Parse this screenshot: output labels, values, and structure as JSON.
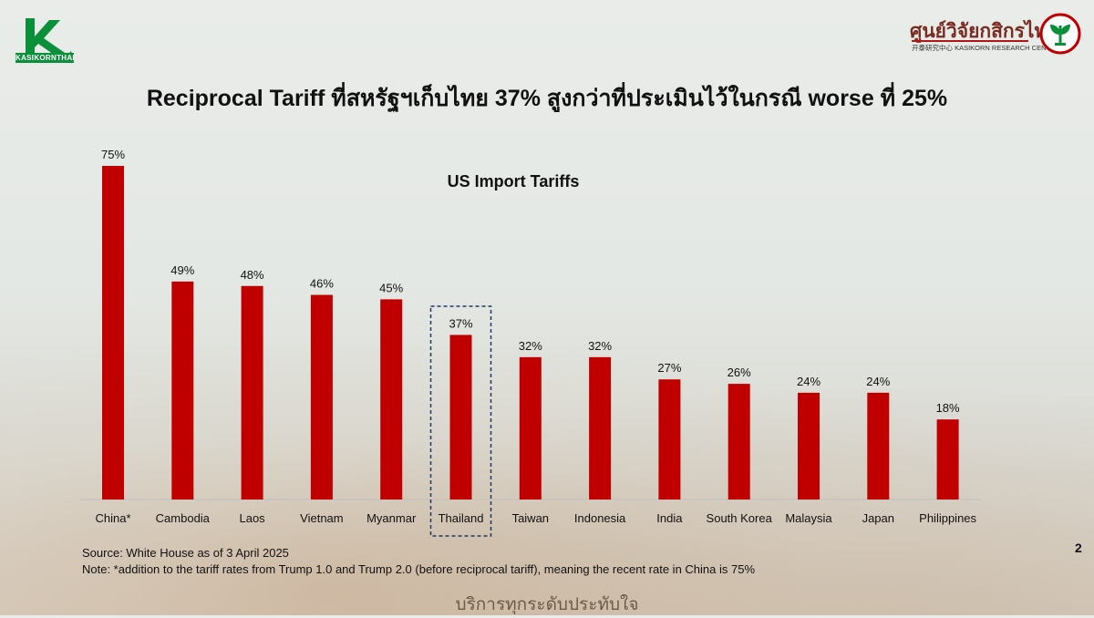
{
  "header": {
    "title": "Reciprocal Tariff ที่สหรัฐฯเก็บไทย 37% สูงกว่าที่ประเมินไว้ในกรณี worse ที่ 25%",
    "logo_left_text": "KASIKORNTHAI",
    "logo_right_thai": "ศูนย์วิจัยกสิกรไทย",
    "logo_right_sub": "开泰研究中心 KASIKORN RESEARCH CENTER"
  },
  "colors": {
    "bar": "#c00000",
    "highlight_border": "#1f3864",
    "brand_green": "#0a8f3a"
  },
  "chart_data": {
    "type": "bar",
    "title": "US Import Tariffs",
    "categories": [
      "China*",
      "Cambodia",
      "Laos",
      "Vietnam",
      "Myanmar",
      "Thailand",
      "Taiwan",
      "Indonesia",
      "India",
      "South Korea",
      "Malaysia",
      "Japan",
      "Philippines"
    ],
    "values": [
      75,
      49,
      48,
      46,
      45,
      37,
      32,
      32,
      27,
      26,
      24,
      24,
      18
    ],
    "value_labels": [
      "75%",
      "49%",
      "48%",
      "46%",
      "45%",
      "37%",
      "32%",
      "32%",
      "27%",
      "26%",
      "24%",
      "24%",
      "18%"
    ],
    "highlight_category": "Thailand",
    "ylim": [
      0,
      75
    ],
    "xlabel": "",
    "ylabel": "",
    "grid": false
  },
  "footer": {
    "source": "Source: White House as of 3 April 2025",
    "note": "Note: *addition to the tariff rates from Trump 1.0 and Trump 2.0 (before reciprocal tariff), meaning the recent rate in China is 75%",
    "page_number": "2",
    "tagline": "บริการทุกระดับประทับใจ"
  }
}
